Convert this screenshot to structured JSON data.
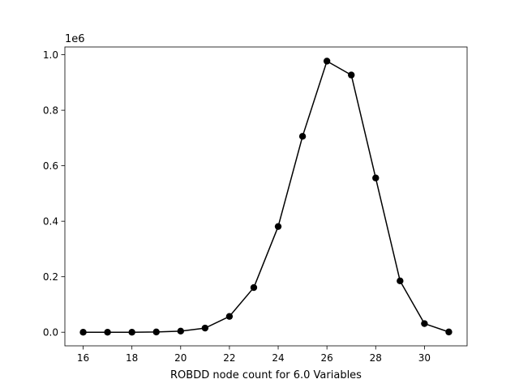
{
  "chart_data": {
    "type": "line",
    "title": "",
    "xlabel": "ROBDD node count for 6.0 Variables",
    "ylabel": "",
    "y_scale_label": "1e6",
    "xlim": [
      15.25,
      31.75
    ],
    "ylim": [
      -0.049,
      1.028
    ],
    "x_ticks": [
      16,
      18,
      20,
      22,
      24,
      26,
      28,
      30
    ],
    "y_ticks": [
      0.0,
      0.2,
      0.4,
      0.6,
      0.8,
      1.0
    ],
    "y_tick_labels": [
      "0.0",
      "0.2",
      "0.4",
      "0.6",
      "0.8",
      "1.0"
    ],
    "grid": false,
    "legend": "none",
    "series": [
      {
        "color": "#000000",
        "marker": "circle",
        "x": [
          16,
          17,
          18,
          19,
          20,
          21,
          22,
          23,
          24,
          25,
          26,
          27,
          28,
          29,
          30,
          31
        ],
        "y": [
          0.0,
          0.0,
          0.0,
          0.001,
          0.004,
          0.015,
          0.057,
          0.161,
          0.381,
          0.706,
          0.977,
          0.927,
          0.556,
          0.185,
          0.031,
          0.001
        ]
      }
    ]
  }
}
